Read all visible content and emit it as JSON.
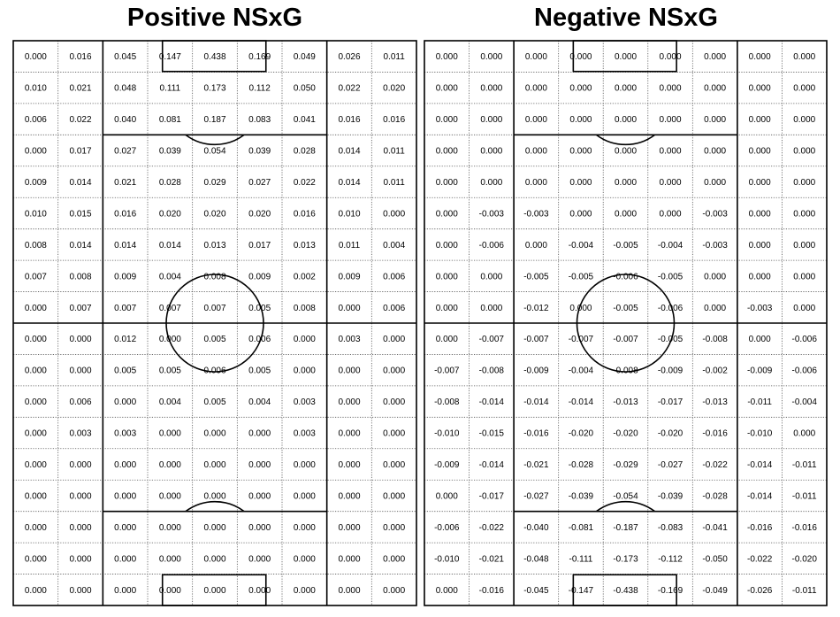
{
  "chart_data": [
    {
      "type": "heatmap",
      "title": "Positive NSxG",
      "rows": [
        [
          "0.000",
          "0.016",
          "0.045",
          "0.147",
          "0.438",
          "0.169",
          "0.049",
          "0.026",
          "0.011"
        ],
        [
          "0.010",
          "0.021",
          "0.048",
          "0.111",
          "0.173",
          "0.112",
          "0.050",
          "0.022",
          "0.020"
        ],
        [
          "0.006",
          "0.022",
          "0.040",
          "0.081",
          "0.187",
          "0.083",
          "0.041",
          "0.016",
          "0.016"
        ],
        [
          "0.000",
          "0.017",
          "0.027",
          "0.039",
          "0.054",
          "0.039",
          "0.028",
          "0.014",
          "0.011"
        ],
        [
          "0.009",
          "0.014",
          "0.021",
          "0.028",
          "0.029",
          "0.027",
          "0.022",
          "0.014",
          "0.011"
        ],
        [
          "0.010",
          "0.015",
          "0.016",
          "0.020",
          "0.020",
          "0.020",
          "0.016",
          "0.010",
          "0.000"
        ],
        [
          "0.008",
          "0.014",
          "0.014",
          "0.014",
          "0.013",
          "0.017",
          "0.013",
          "0.011",
          "0.004"
        ],
        [
          "0.007",
          "0.008",
          "0.009",
          "0.004",
          "0.008",
          "0.009",
          "0.002",
          "0.009",
          "0.006"
        ],
        [
          "0.000",
          "0.007",
          "0.007",
          "0.007",
          "0.007",
          "0.005",
          "0.008",
          "0.000",
          "0.006"
        ],
        [
          "0.000",
          "0.000",
          "0.012",
          "0.000",
          "0.005",
          "0.006",
          "0.000",
          "0.003",
          "0.000"
        ],
        [
          "0.000",
          "0.000",
          "0.005",
          "0.005",
          "0.006",
          "0.005",
          "0.000",
          "0.000",
          "0.000"
        ],
        [
          "0.000",
          "0.006",
          "0.000",
          "0.004",
          "0.005",
          "0.004",
          "0.003",
          "0.000",
          "0.000"
        ],
        [
          "0.000",
          "0.003",
          "0.003",
          "0.000",
          "0.000",
          "0.000",
          "0.003",
          "0.000",
          "0.000"
        ],
        [
          "0.000",
          "0.000",
          "0.000",
          "0.000",
          "0.000",
          "0.000",
          "0.000",
          "0.000",
          "0.000"
        ],
        [
          "0.000",
          "0.000",
          "0.000",
          "0.000",
          "0.000",
          "0.000",
          "0.000",
          "0.000",
          "0.000"
        ],
        [
          "0.000",
          "0.000",
          "0.000",
          "0.000",
          "0.000",
          "0.000",
          "0.000",
          "0.000",
          "0.000"
        ],
        [
          "0.000",
          "0.000",
          "0.000",
          "0.000",
          "0.000",
          "0.000",
          "0.000",
          "0.000",
          "0.000"
        ],
        [
          "0.000",
          "0.000",
          "0.000",
          "0.000",
          "0.000",
          "0.000",
          "0.000",
          "0.000",
          "0.000"
        ]
      ]
    },
    {
      "type": "heatmap",
      "title": "Negative NSxG",
      "rows": [
        [
          "0.000",
          "0.000",
          "0.000",
          "0.000",
          "0.000",
          "0.000",
          "0.000",
          "0.000",
          "0.000"
        ],
        [
          "0.000",
          "0.000",
          "0.000",
          "0.000",
          "0.000",
          "0.000",
          "0.000",
          "0.000",
          "0.000"
        ],
        [
          "0.000",
          "0.000",
          "0.000",
          "0.000",
          "0.000",
          "0.000",
          "0.000",
          "0.000",
          "0.000"
        ],
        [
          "0.000",
          "0.000",
          "0.000",
          "0.000",
          "0.000",
          "0.000",
          "0.000",
          "0.000",
          "0.000"
        ],
        [
          "0.000",
          "0.000",
          "0.000",
          "0.000",
          "0.000",
          "0.000",
          "0.000",
          "0.000",
          "0.000"
        ],
        [
          "0.000",
          "-0.003",
          "-0.003",
          "0.000",
          "0.000",
          "0.000",
          "-0.003",
          "0.000",
          "0.000"
        ],
        [
          "0.000",
          "-0.006",
          "0.000",
          "-0.004",
          "-0.005",
          "-0.004",
          "-0.003",
          "0.000",
          "0.000"
        ],
        [
          "0.000",
          "0.000",
          "-0.005",
          "-0.005",
          "-0.006",
          "-0.005",
          "0.000",
          "0.000",
          "0.000"
        ],
        [
          "0.000",
          "0.000",
          "-0.012",
          "0.000",
          "-0.005",
          "-0.006",
          "0.000",
          "-0.003",
          "0.000"
        ],
        [
          "0.000",
          "-0.007",
          "-0.007",
          "-0.007",
          "-0.007",
          "-0.005",
          "-0.008",
          "0.000",
          "-0.006"
        ],
        [
          "-0.007",
          "-0.008",
          "-0.009",
          "-0.004",
          "-0.008",
          "-0.009",
          "-0.002",
          "-0.009",
          "-0.006"
        ],
        [
          "-0.008",
          "-0.014",
          "-0.014",
          "-0.014",
          "-0.013",
          "-0.017",
          "-0.013",
          "-0.011",
          "-0.004"
        ],
        [
          "-0.010",
          "-0.015",
          "-0.016",
          "-0.020",
          "-0.020",
          "-0.020",
          "-0.016",
          "-0.010",
          "0.000"
        ],
        [
          "-0.009",
          "-0.014",
          "-0.021",
          "-0.028",
          "-0.029",
          "-0.027",
          "-0.022",
          "-0.014",
          "-0.011"
        ],
        [
          "0.000",
          "-0.017",
          "-0.027",
          "-0.039",
          "-0.054",
          "-0.039",
          "-0.028",
          "-0.014",
          "-0.011"
        ],
        [
          "-0.006",
          "-0.022",
          "-0.040",
          "-0.081",
          "-0.187",
          "-0.083",
          "-0.041",
          "-0.016",
          "-0.016"
        ],
        [
          "-0.010",
          "-0.021",
          "-0.048",
          "-0.111",
          "-0.173",
          "-0.112",
          "-0.050",
          "-0.022",
          "-0.020"
        ],
        [
          "0.000",
          "-0.016",
          "-0.045",
          "-0.147",
          "-0.438",
          "-0.169",
          "-0.049",
          "-0.026",
          "-0.011"
        ]
      ]
    }
  ]
}
